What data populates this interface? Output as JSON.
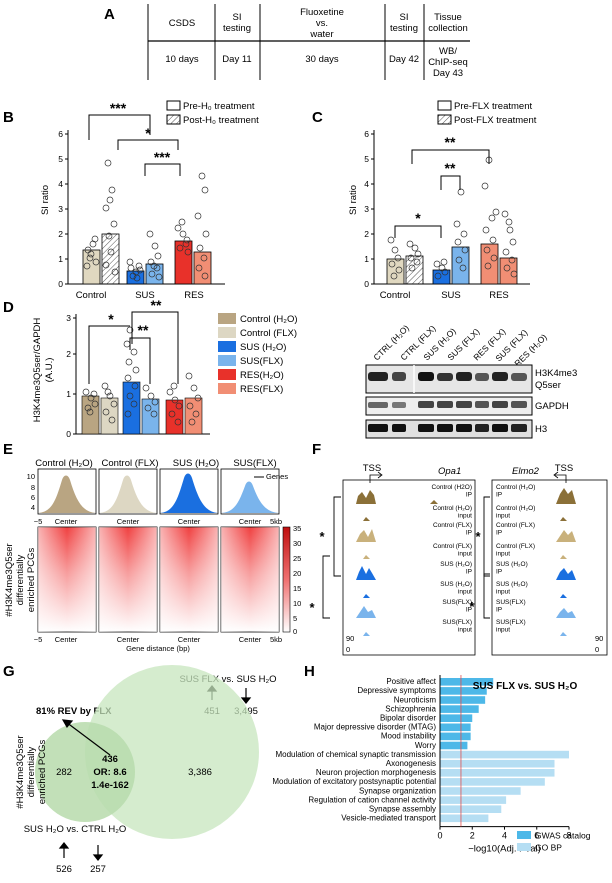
{
  "panels": {
    "A": "A",
    "B": "B",
    "C": "C",
    "D": "D",
    "E": "E",
    "F": "F",
    "G": "G",
    "H": "H"
  },
  "timeline": {
    "headers": [
      "CSDS",
      "SI testing",
      "Fluoxetine vs. water",
      "SI testing",
      "Tissue collection"
    ],
    "days": [
      "10 days",
      "Day 11",
      "30 days",
      "Day 42",
      "WB/ ChIP-seq Day 43"
    ]
  },
  "panelB": {
    "ylabel": "SI ratio",
    "legend": [
      "Pre-H₀ treatment",
      "Post-H₀ treatment"
    ],
    "groups": [
      "Control",
      "SUS",
      "RES"
    ],
    "sig": [
      "***",
      "*",
      "***"
    ]
  },
  "panelC": {
    "ylabel": "SI ratio",
    "legend": [
      "Pre-FLX treatment",
      "Post-FLX treatment"
    ],
    "groups": [
      "Control",
      "SUS",
      "RES"
    ],
    "sig": [
      "*",
      "**",
      "**"
    ]
  },
  "panelD": {
    "ylabel": "H3K4me3Q5ser/GAPDH",
    "yunit": "(A.U.)",
    "sig": [
      "*",
      "**",
      "**"
    ],
    "legend": [
      "Control (H₂O)",
      "Control (FLX)",
      "SUS (H₂O)",
      "SUS(FLX)",
      "RES(H₂O)",
      "RES(FLX)"
    ],
    "legend_colors": [
      "#b9a582",
      "#ddd7c3",
      "#1a6fe0",
      "#7ab4ec",
      "#e8312a",
      "#f18e74"
    ]
  },
  "blot": {
    "lanes": [
      "CTRL (H₂O)",
      "CTRL (FLX)",
      "SUS (H₂O)",
      "SUS (FLX)",
      "RES (FLX)",
      "SUS (FLX)",
      "RES (H₂O)"
    ],
    "rows": [
      "H3K4me3 Q5ser",
      "GAPDH",
      "H3"
    ]
  },
  "panelE": {
    "titles": [
      "Control (H₂O)",
      "Control (FLX)",
      "SUS (H₂O)",
      "SUS(FLX)"
    ],
    "genes_label": "Genes",
    "ylabel": "#H3K4me3Q5ser differentially enriched PCGs",
    "xlabel": "Gene distance (bp)",
    "center": "Center",
    "edge_left": "−5",
    "edge_right": "5kb",
    "profile_ticks": [
      "10",
      "8",
      "6",
      "4"
    ],
    "heat_ticks": [
      "35",
      "30",
      "25",
      "20",
      "15",
      "10",
      "5",
      "0"
    ]
  },
  "panelF": {
    "gene1": "Opa1",
    "gene2": "Elmo2",
    "tss": "TSS",
    "tracks1": [
      "Control (H2O) IP",
      "Control (H₂O) input",
      "Control (FLX) IP",
      "Control (FLX) input",
      "SUS (H₂O) IP",
      "SUS (H₂O) input",
      "SUS(FLX) IP",
      "SUS(FLX) input"
    ],
    "tracks2": [
      "Control (H₂O) IP",
      "Control (H₂O) input",
      "Control (FLX) IP",
      "Control (FLX) input",
      "SUS (H₂O) IP",
      "SUS (H₂O) input",
      "SUS(FLX) IP",
      "SUS(FLX) input"
    ],
    "scale_top": "90",
    "scale_bottom": "0",
    "sig": "*"
  },
  "panelG": {
    "top_label": "SUS FLX vs. SUS H₂O",
    "top_up": "451",
    "top_down": "3,495",
    "rev_label": "81% REV by FLX",
    "left_count": "282",
    "center_count": "436",
    "or_label": "OR: 8.6",
    "pval": "1.4e-162",
    "right_count": "3,386",
    "ylabel": "#H3K4me3Q5ser differentially enriched PCGs",
    "bottom_label": "SUS H₂O vs. CTRL H₂O",
    "bottom_up": "526",
    "bottom_down": "257"
  },
  "chart_data": [
    {
      "type": "bar",
      "title": "SUS FLX vs. SUS H₂O",
      "xlabel": "−log10(Adj. Pval)",
      "xlim": [
        0,
        8
      ],
      "x_ticks": [
        "0",
        "2",
        "4",
        "6",
        "8"
      ],
      "categories": [
        "Positive affect",
        "Depressive symptoms",
        "Neuroticism",
        "Schizophrenia",
        "Bipolar disorder",
        "Major depressive disorder (MTAG)",
        "Mood instability",
        "Worry",
        "Modulation of chemical synaptic transmission",
        "Axonogenesis",
        "Neuron projection morphogenesis",
        "Modulation of excitatory postsynaptic potential",
        "Synapse organization",
        "Regulation of cation channel activity",
        "Synapse assembly",
        "Vesicle-mediated transport"
      ],
      "values": [
        3.3,
        2.9,
        2.8,
        2.4,
        2.0,
        1.9,
        1.9,
        1.7,
        8.0,
        7.1,
        7.1,
        6.5,
        5.0,
        4.1,
        3.8,
        3.0
      ],
      "series_labels": [
        "GWAS catalog",
        "GWAS catalog",
        "GWAS catalog",
        "GWAS catalog",
        "GWAS catalog",
        "GWAS catalog",
        "GWAS catalog",
        "GWAS catalog",
        "GO BP",
        "GO BP",
        "GO BP",
        "GO BP",
        "GO BP",
        "GO BP",
        "GO BP",
        "GO BP"
      ],
      "legend": [
        "GWAS catalog",
        "GO BP"
      ],
      "colors": {
        "GWAS catalog": "#4db8e8",
        "GO BP": "#b5def3"
      },
      "threshold": 1.3
    }
  ]
}
